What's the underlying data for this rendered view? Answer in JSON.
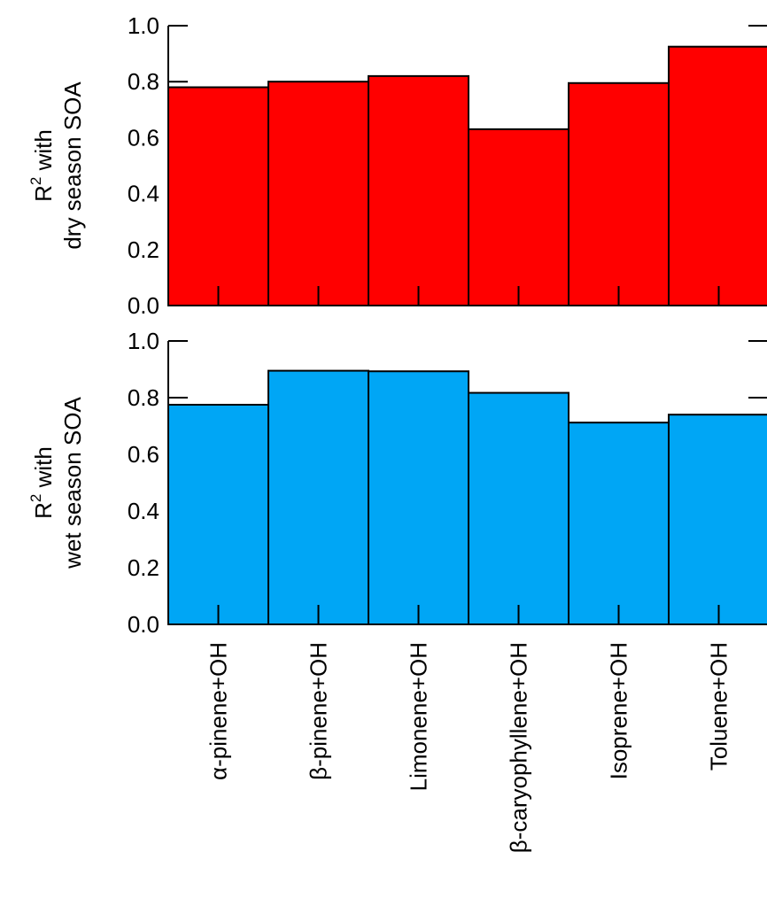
{
  "chart_data": [
    {
      "type": "bar",
      "panel": "top",
      "categories": [
        "α-pinene+OH",
        "β-pinene+OH",
        "Limonene+OH",
        "β-caryophyllene+OH",
        "Isoprene+OH",
        "Toluene+OH"
      ],
      "values": [
        0.78,
        0.8,
        0.82,
        0.63,
        0.795,
        0.925
      ],
      "color": "#ff0000",
      "ylabel_line1": "R",
      "ylabel_sup": "2",
      "ylabel_line1_rest": " with",
      "ylabel_line2": "dry season SOA",
      "ylim": [
        0,
        1.0
      ],
      "yticks": [
        "0.0",
        "0.2",
        "0.4",
        "0.6",
        "0.8",
        "1.0"
      ]
    },
    {
      "type": "bar",
      "panel": "bottom",
      "categories": [
        "α-pinene+OH",
        "β-pinene+OH",
        "Limonene+OH",
        "β-caryophyllene+OH",
        "Isoprene+OH",
        "Toluene+OH"
      ],
      "values": [
        0.775,
        0.895,
        0.893,
        0.817,
        0.712,
        0.74
      ],
      "color": "#00a6f5",
      "ylabel_line1": "R",
      "ylabel_sup": "2",
      "ylabel_line1_rest": " with",
      "ylabel_line2": "wet season SOA",
      "ylim": [
        0,
        1.0
      ],
      "yticks": [
        "0.0",
        "0.2",
        "0.4",
        "0.6",
        "0.8",
        "1.0"
      ]
    }
  ]
}
